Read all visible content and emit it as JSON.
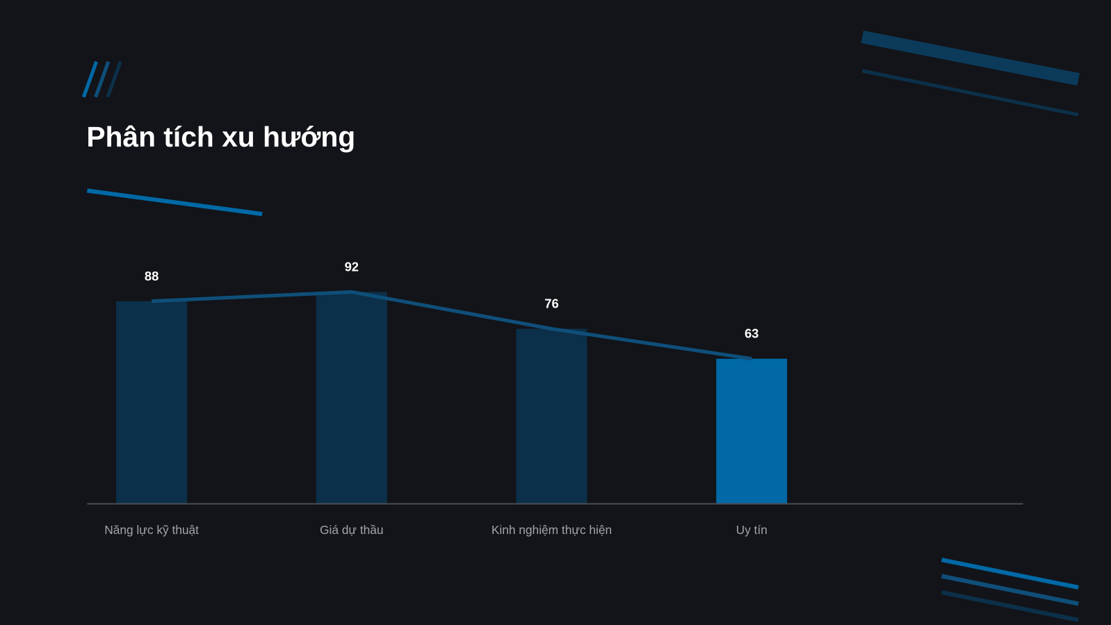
{
  "chart_data": {
    "type": "bar",
    "title": "Phân tích xu hướng",
    "categories": [
      "Năng lực kỹ thuật",
      "Giá dự thầu",
      "Kinh nghiệm thực hiện",
      "Uy tín"
    ],
    "values": [
      88,
      92,
      76,
      63
    ],
    "colors": [
      "#0c3049",
      "#0c3049",
      "#0c3049",
      "#0069a6"
    ],
    "line_color": "#0f4f7a",
    "ylim": [
      0,
      100
    ]
  }
}
